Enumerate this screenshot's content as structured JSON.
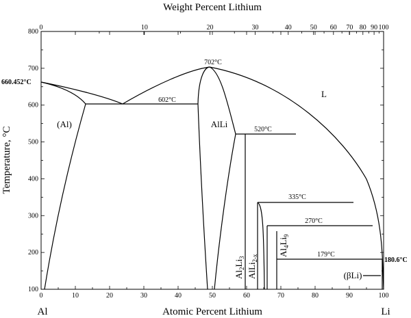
{
  "top_axis": {
    "title": "Weight Percent Lithium",
    "ticks": [
      "0",
      "10",
      "20",
      "30",
      "40",
      "50",
      "60",
      "70",
      "80",
      "90",
      "100"
    ]
  },
  "bottom_axis": {
    "title": "Atomic Percent Lithium",
    "ticks": [
      "0",
      "10",
      "20",
      "30",
      "40",
      "50",
      "60",
      "70",
      "80",
      "90",
      "100"
    ],
    "left_element": "Al",
    "right_element": "Li"
  },
  "left_axis": {
    "title": "Temperature, °C",
    "ticks": [
      "100",
      "200",
      "300",
      "400",
      "500",
      "600",
      "700",
      "800"
    ]
  },
  "annotations": {
    "al_melting": "660.452°C",
    "li_melting": "180.6°C",
    "t702": "702°C",
    "t602": "602°C",
    "t520": "520°C",
    "t335": "335°C",
    "t270": "270°C",
    "t179": "179°C"
  },
  "phases": {
    "liquid": "L",
    "al_solid": "(Al)",
    "alli": "AlLi",
    "al2li3": {
      "base": "Al",
      "sub1": "2",
      "mid": "Li",
      "sub2": "3"
    },
    "alli2x": {
      "base": "AlLi",
      "sub1": "2-x"
    },
    "al4li9": {
      "base": "Al",
      "sub1": "4",
      "mid": "Li",
      "sub2": "9"
    },
    "beta_li": "(βLi)"
  }
}
